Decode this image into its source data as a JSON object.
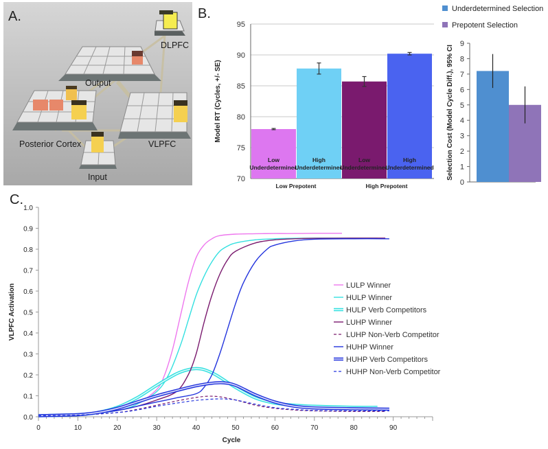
{
  "panels": {
    "a": {
      "letter": "A.",
      "labels": {
        "dlpfc": "DLPFC",
        "output": "Output",
        "posterior": "Posterior Cortex",
        "vlpfc": "VLPFC",
        "input": "Input"
      }
    },
    "b": {
      "letter": "B."
    },
    "c": {
      "letter": "C."
    }
  },
  "chart_data": [
    {
      "type": "bar",
      "id": "model-rt",
      "ylabel": "Model RT (Cycles, +/- SE)",
      "ylim": [
        70,
        95
      ],
      "yticks": [
        70,
        75,
        80,
        85,
        90,
        95
      ],
      "grid": true,
      "groups": [
        "Low Prepotent",
        "High Prepotent"
      ],
      "bars": [
        {
          "group": "Low Prepotent",
          "label_line1": "Low",
          "label_line2": "Underdetermined",
          "value": 78.0,
          "se": 0.1,
          "color": "#dd77f0"
        },
        {
          "group": "Low Prepotent",
          "label_line1": "High",
          "label_line2": "Underdetermined",
          "value": 87.8,
          "se": 0.9,
          "color": "#6fd0f5"
        },
        {
          "group": "High Prepotent",
          "label_line1": "Low",
          "label_line2": "Underdetermined",
          "value": 85.7,
          "se": 0.8,
          "color": "#7a1a6e"
        },
        {
          "group": "High Prepotent",
          "label_line1": "High",
          "label_line2": "Underdetermined",
          "value": 90.2,
          "se": 0.2,
          "color": "#4a63f0"
        }
      ]
    },
    {
      "type": "bar",
      "id": "selection-cost",
      "ylabel": "Selection Cost (Model Cycle Diff.), 95% CI",
      "ylim": [
        0,
        9
      ],
      "yticks": [
        0,
        1,
        2,
        3,
        4,
        5,
        6,
        7,
        8,
        9
      ],
      "grid": false,
      "legend_position": "top",
      "series": [
        {
          "name": "Underdetermined Selection",
          "value": 7.2,
          "ci_low": 6.1,
          "ci_high": 8.3,
          "color": "#4f8fd0"
        },
        {
          "name": "Prepotent Selection",
          "value": 5.0,
          "ci_low": 3.8,
          "ci_high": 6.2,
          "color": "#8f74b8"
        }
      ]
    },
    {
      "type": "line",
      "id": "vlpfc-activation",
      "xlabel": "Cycle",
      "ylabel": "VLPFC Activation",
      "xlim": [
        0,
        100
      ],
      "ylim": [
        0,
        1
      ],
      "xticks": [
        0,
        10,
        20,
        30,
        40,
        50,
        60,
        70,
        80,
        90
      ],
      "yticks": [
        0.0,
        0.1,
        0.2,
        0.3,
        0.4,
        0.5,
        0.6,
        0.7,
        0.8,
        0.9,
        1.0
      ],
      "legend_position": "right",
      "series": [
        {
          "name": "LULP Winner",
          "color": "#ee77ee",
          "style": "solid",
          "x": [
            0,
            10,
            20,
            25,
            30,
            32,
            34,
            36,
            38,
            40,
            42,
            44,
            46,
            50,
            55,
            60,
            65,
            70,
            77
          ],
          "y": [
            0.005,
            0.008,
            0.03,
            0.06,
            0.13,
            0.2,
            0.32,
            0.48,
            0.64,
            0.76,
            0.82,
            0.85,
            0.865,
            0.872,
            0.874,
            0.875,
            0.875,
            0.876,
            0.876
          ]
        },
        {
          "name": "HULP Winner",
          "color": "#33e0e0",
          "style": "solid",
          "x": [
            0,
            10,
            20,
            25,
            30,
            33,
            36,
            38,
            40,
            42,
            44,
            46,
            48,
            50,
            55,
            60,
            65,
            70,
            75,
            80,
            86
          ],
          "y": [
            0.005,
            0.008,
            0.03,
            0.06,
            0.12,
            0.2,
            0.34,
            0.46,
            0.58,
            0.67,
            0.74,
            0.79,
            0.815,
            0.83,
            0.845,
            0.85,
            0.852,
            0.853,
            0.853,
            0.853,
            0.853
          ]
        },
        {
          "name": "HULP Verb Competitors",
          "color": "#33e0e0",
          "style": "double",
          "x": [
            0,
            10,
            15,
            20,
            25,
            30,
            35,
            38,
            40,
            42,
            45,
            50,
            55,
            60,
            65,
            70,
            80,
            86
          ],
          "y": [
            0.005,
            0.01,
            0.02,
            0.045,
            0.09,
            0.15,
            0.205,
            0.225,
            0.23,
            0.225,
            0.2,
            0.14,
            0.09,
            0.065,
            0.055,
            0.05,
            0.045,
            0.045
          ]
        },
        {
          "name": "LUHP Winner",
          "color": "#7a1a6e",
          "style": "solid",
          "x": [
            0,
            10,
            20,
            25,
            30,
            35,
            38,
            40,
            42,
            44,
            46,
            48,
            50,
            55,
            60,
            65,
            70,
            80,
            88
          ],
          "y": [
            0.005,
            0.008,
            0.03,
            0.05,
            0.08,
            0.12,
            0.2,
            0.3,
            0.45,
            0.58,
            0.68,
            0.75,
            0.79,
            0.83,
            0.845,
            0.85,
            0.852,
            0.853,
            0.853
          ]
        },
        {
          "name": "LUHP Non-Verb Competitor",
          "color": "#7a1a6e",
          "style": "dashed",
          "x": [
            0,
            10,
            20,
            25,
            30,
            35,
            40,
            43,
            46,
            50,
            55,
            60,
            65,
            70,
            80,
            88
          ],
          "y": [
            0.005,
            0.008,
            0.02,
            0.035,
            0.055,
            0.075,
            0.092,
            0.098,
            0.095,
            0.08,
            0.055,
            0.04,
            0.032,
            0.028,
            0.025,
            0.025
          ]
        },
        {
          "name": "HUHP Winner",
          "color": "#2233dd",
          "style": "solid",
          "x": [
            0,
            10,
            20,
            25,
            30,
            35,
            40,
            42,
            44,
            46,
            48,
            50,
            52,
            55,
            58,
            60,
            65,
            70,
            80,
            89
          ],
          "y": [
            0.005,
            0.008,
            0.03,
            0.05,
            0.07,
            0.09,
            0.11,
            0.14,
            0.2,
            0.3,
            0.42,
            0.54,
            0.64,
            0.74,
            0.8,
            0.82,
            0.84,
            0.848,
            0.85,
            0.85
          ]
        },
        {
          "name": "HUHP Verb Competitors",
          "color": "#2233dd",
          "style": "double",
          "x": [
            0,
            10,
            15,
            20,
            25,
            30,
            35,
            40,
            44,
            47,
            50,
            55,
            60,
            65,
            70,
            80,
            89
          ],
          "y": [
            0.005,
            0.01,
            0.02,
            0.04,
            0.07,
            0.1,
            0.125,
            0.148,
            0.16,
            0.162,
            0.15,
            0.105,
            0.07,
            0.05,
            0.042,
            0.038,
            0.036
          ]
        },
        {
          "name": "HUHP Non-Verb Competitor",
          "color": "#2233dd",
          "style": "dashed",
          "x": [
            0,
            10,
            20,
            25,
            30,
            35,
            40,
            45,
            48,
            50,
            55,
            60,
            65,
            70,
            80,
            89
          ],
          "y": [
            0.005,
            0.008,
            0.02,
            0.032,
            0.05,
            0.065,
            0.078,
            0.085,
            0.084,
            0.08,
            0.06,
            0.043,
            0.035,
            0.03,
            0.028,
            0.028
          ]
        }
      ]
    }
  ]
}
